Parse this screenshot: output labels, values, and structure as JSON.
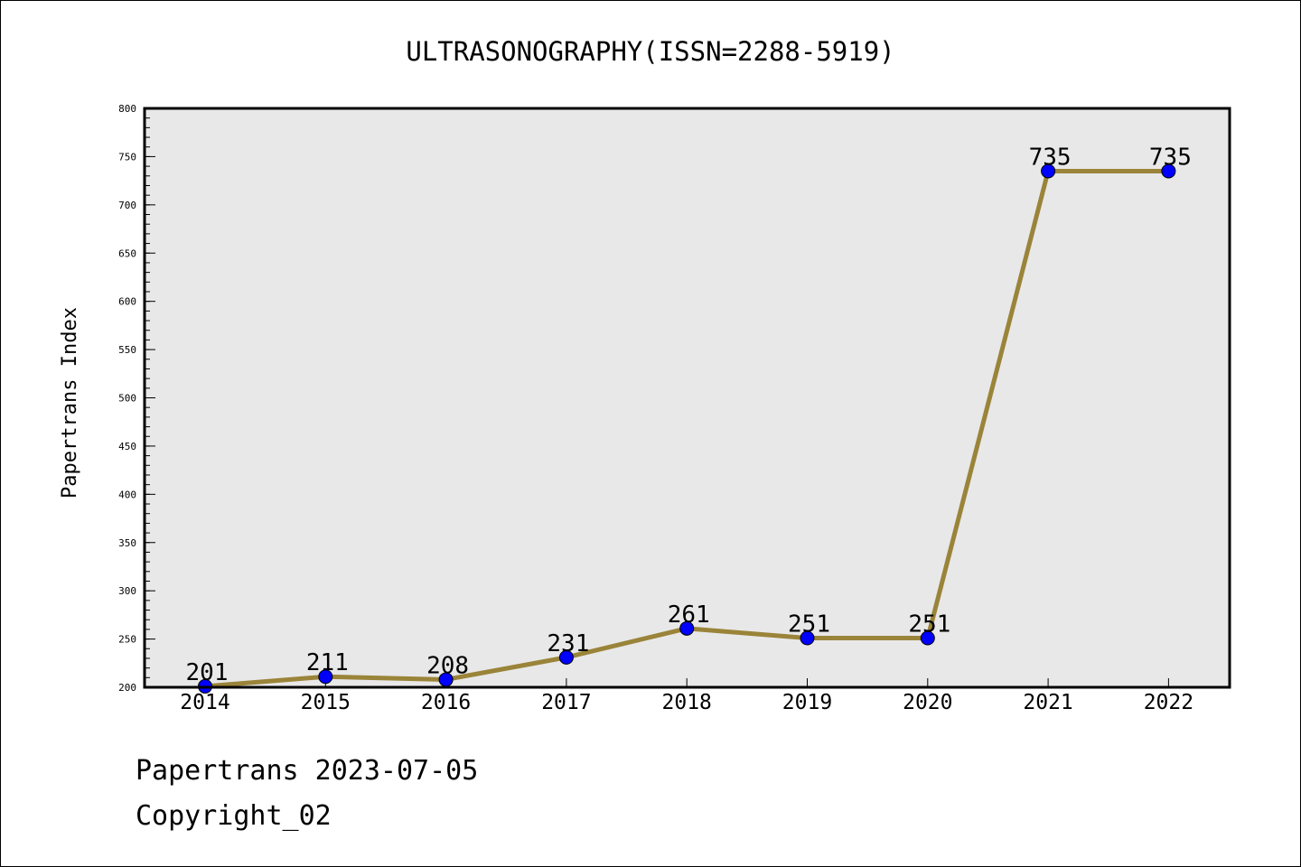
{
  "chart_data": {
    "type": "line",
    "title": "ULTRASONOGRAPHY(ISSN=2288-5919)",
    "xlabel": "",
    "ylabel": "Papertrans Index",
    "categories": [
      "2014",
      "2015",
      "2016",
      "2017",
      "2018",
      "2019",
      "2020",
      "2021",
      "2022"
    ],
    "series": [
      {
        "values": [
          201,
          211,
          208,
          231,
          261,
          251,
          251,
          735,
          735
        ]
      }
    ],
    "data_labels": [
      "201",
      "211",
      "208",
      "231",
      "261",
      "251",
      "251",
      "735",
      "735"
    ],
    "ylim": [
      200,
      800
    ],
    "yticks": [
      "200",
      "250",
      "300",
      "350",
      "400",
      "450",
      "500",
      "550",
      "600",
      "650",
      "700",
      "750",
      "800"
    ],
    "grid": false,
    "legend": "none",
    "colors": {
      "line": "#9a8439",
      "marker": "#0000ff",
      "plot_background": "#e8e8e8"
    }
  },
  "footer": {
    "line1": "Papertrans 2023-07-05",
    "line2": "Copyright_02"
  }
}
